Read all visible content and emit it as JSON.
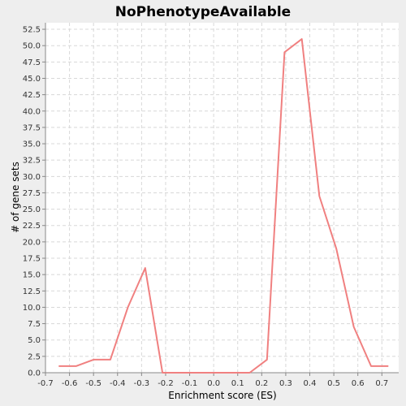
{
  "chart_data": {
    "type": "line",
    "title": "NoPhenotypeAvailable",
    "xlabel": "Enrichment score (ES)",
    "ylabel": "# of gene sets",
    "xlim": [
      -0.7,
      0.77
    ],
    "ylim": [
      0,
      53.5
    ],
    "xticks": [
      "-0.7",
      "-0.6",
      "-0.5",
      "-0.4",
      "-0.3",
      "-0.2",
      "-0.1",
      "0.0",
      "0.1",
      "0.2",
      "0.3",
      "0.4",
      "0.5",
      "0.6",
      "0.7"
    ],
    "xtick_values": [
      -0.7,
      -0.6,
      -0.5,
      -0.4,
      -0.3,
      -0.2,
      -0.1,
      0.0,
      0.1,
      0.2,
      0.3,
      0.4,
      0.5,
      0.6,
      0.7
    ],
    "yticks": [
      "0.0",
      "2.5",
      "5.0",
      "7.5",
      "10.0",
      "12.5",
      "15.0",
      "17.5",
      "20.0",
      "22.5",
      "25.0",
      "27.5",
      "30.0",
      "32.5",
      "35.0",
      "37.5",
      "40.0",
      "42.5",
      "45.0",
      "47.5",
      "50.0",
      "52.5"
    ],
    "ytick_values": [
      0,
      2.5,
      5,
      7.5,
      10,
      12.5,
      15,
      17.5,
      20,
      22.5,
      25,
      27.5,
      30,
      32.5,
      35,
      37.5,
      40,
      42.5,
      45,
      47.5,
      50,
      52.5
    ],
    "grid": true,
    "legend": "none",
    "series": [
      {
        "color": "#f08080",
        "x": [
          -0.645,
          -0.573,
          -0.5,
          -0.43,
          -0.357,
          -0.285,
          -0.213,
          -0.14,
          -0.068,
          0.005,
          0.077,
          0.15,
          0.222,
          0.295,
          0.367,
          0.44,
          0.51,
          0.583,
          0.655,
          0.727
        ],
        "y": [
          1,
          1,
          2,
          2,
          10,
          16,
          0,
          0,
          0,
          0,
          0,
          0,
          2,
          49,
          51,
          27,
          19,
          7,
          1,
          1
        ]
      }
    ]
  },
  "colors": {
    "background": "#eeeeee",
    "plot_background": "#ffffff",
    "series": "#f08080"
  }
}
